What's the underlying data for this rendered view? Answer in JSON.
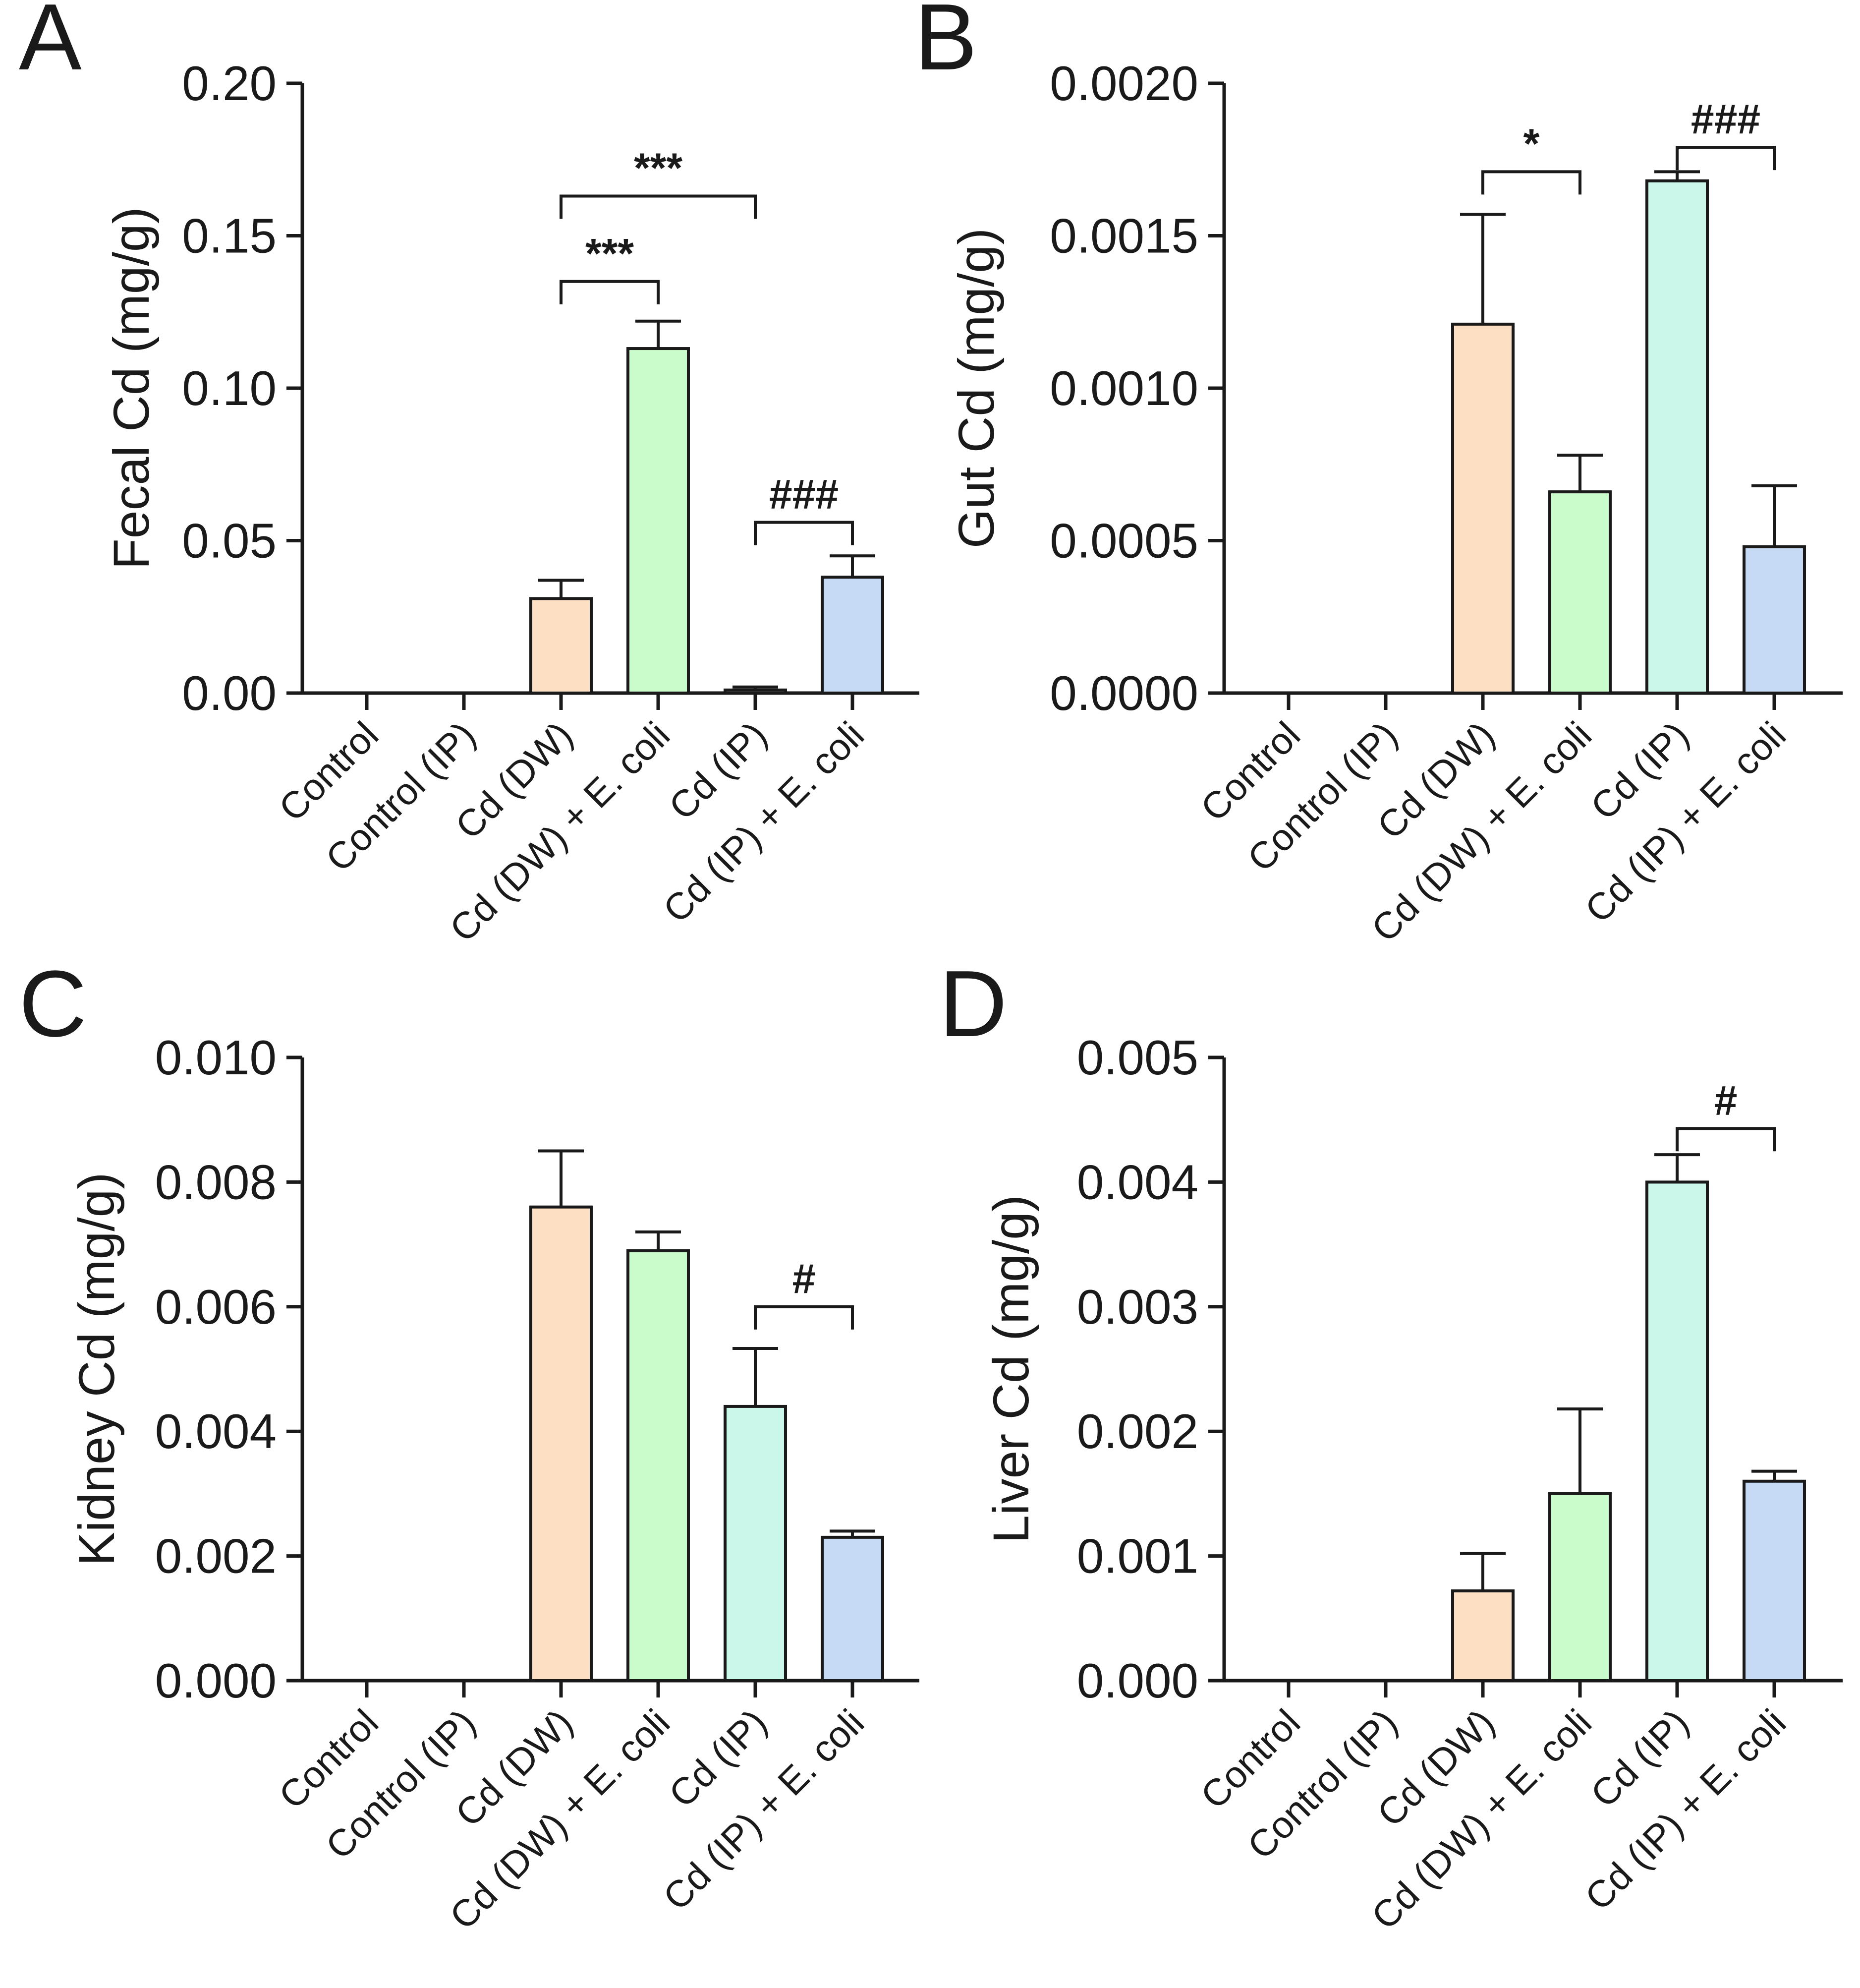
{
  "colors": {
    "axis": "#1a1a1a",
    "bar_outline": "#1a1a1a",
    "bar_fills": [
      "#ffffff",
      "#ffffff",
      "#fde0c4",
      "#c9fbcb",
      "#cbf7ea",
      "#c6daf6"
    ]
  },
  "chart_data": [
    {
      "panel": "A",
      "type": "bar",
      "ylabel": "Fecal Cd (mg/g)",
      "ylim": [
        0,
        0.2
      ],
      "yticks": [
        "0.00",
        "0.05",
        "0.10",
        "0.15",
        "0.20"
      ],
      "categories": [
        "Control",
        "Control (IP)",
        "Cd (DW)",
        "Cd (DW) + E. coli",
        "Cd (IP)",
        "Cd (IP) + E. coli"
      ],
      "values": [
        0,
        0,
        0.031,
        0.113,
        0.001,
        0.038
      ],
      "errors": [
        0,
        0,
        0.006,
        0.009,
        0.001,
        0.007
      ],
      "annotations": [
        {
          "from": 2,
          "to": 3,
          "label": "***",
          "y": 0.135
        },
        {
          "from": 2,
          "to": 4,
          "label": "***",
          "y": 0.163
        },
        {
          "from": 4,
          "to": 5,
          "label": "###",
          "y": 0.056
        }
      ]
    },
    {
      "panel": "B",
      "type": "bar",
      "ylabel": "Gut Cd (mg/g)",
      "ylim": [
        0,
        0.002
      ],
      "yticks": [
        "0.0000",
        "0.0005",
        "0.0010",
        "0.0015",
        "0.0020"
      ],
      "categories": [
        "Control",
        "Control (IP)",
        "Cd (DW)",
        "Cd (DW) + E. coli",
        "Cd (IP)",
        "Cd (IP) + E. coli"
      ],
      "values": [
        0,
        0,
        0.00121,
        0.00066,
        0.00168,
        0.00048
      ],
      "errors": [
        0,
        0,
        0.00036,
        0.00012,
        3e-05,
        0.0002
      ],
      "annotations": [
        {
          "from": 2,
          "to": 3,
          "label": "*",
          "y": 0.00171
        },
        {
          "from": 4,
          "to": 5,
          "label": "###",
          "y": 0.00179
        }
      ]
    },
    {
      "panel": "C",
      "type": "bar",
      "ylabel": "Kidney Cd (mg/g)",
      "ylim": [
        0,
        0.01
      ],
      "yticks": [
        "0.000",
        "0.002",
        "0.004",
        "0.006",
        "0.008",
        "0.010"
      ],
      "categories": [
        "Control",
        "Control (IP)",
        "Cd (DW)",
        "Cd (DW) + E. coli",
        "Cd (IP)",
        "Cd (IP) + E. coli"
      ],
      "values": [
        0,
        0,
        0.0076,
        0.0069,
        0.0044,
        0.0023
      ],
      "errors": [
        0,
        0,
        0.0009,
        0.0003,
        0.00093,
        0.0001
      ],
      "annotations": [
        {
          "from": 4,
          "to": 5,
          "label": "#",
          "y": 0.006
        }
      ]
    },
    {
      "panel": "D",
      "type": "bar",
      "ylabel": "Liver Cd (mg/g)",
      "ylim": [
        0,
        0.005
      ],
      "yticks": [
        "0.000",
        "0.001",
        "0.002",
        "0.003",
        "0.004",
        "0.005"
      ],
      "categories": [
        "Control",
        "Control (IP)",
        "Cd (DW)",
        "Cd (DW) + E. coli",
        "Cd (IP)",
        "Cd (IP) + E. coli"
      ],
      "values": [
        0,
        0,
        0.00072,
        0.0015,
        0.004,
        0.0016
      ],
      "errors": [
        0,
        0,
        0.0003,
        0.00068,
        0.00022,
        8e-05
      ],
      "annotations": [
        {
          "from": 4,
          "to": 5,
          "label": "#",
          "y": 0.00443
        }
      ]
    }
  ]
}
